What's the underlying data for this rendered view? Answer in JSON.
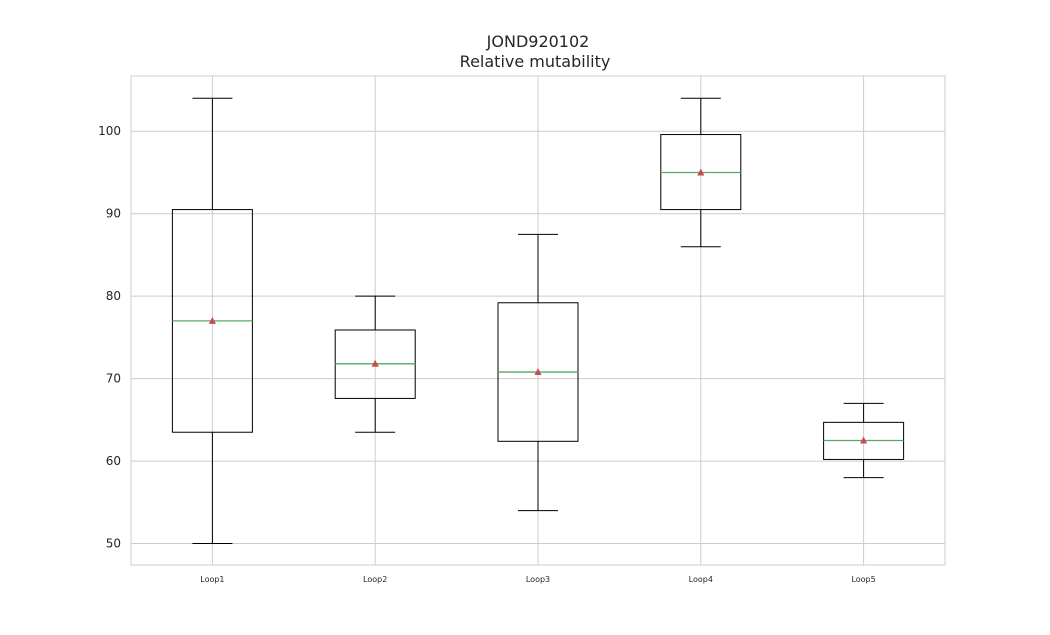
{
  "chart_data": {
    "type": "box",
    "title": "JOND920102",
    "subtitle": "Relative mutability",
    "xlabel": "",
    "ylabel": "",
    "ylim": [
      47.4,
      106.7
    ],
    "yticks": [
      50,
      60,
      70,
      80,
      90,
      100
    ],
    "grid": true,
    "colors": {
      "box": "#000000",
      "median": "#55a868",
      "mean_marker": "#c44e52",
      "grid": "#cccccc",
      "frame": "#cccccc"
    },
    "boxes": [
      {
        "label": "Loop1",
        "whisker_low": 50.0,
        "q1": 63.5,
        "median": 77.0,
        "mean": 77.0,
        "q3": 90.5,
        "whisker_high": 104.0
      },
      {
        "label": "Loop2",
        "whisker_low": 63.5,
        "q1": 67.6,
        "median": 71.8,
        "mean": 71.8,
        "q3": 75.9,
        "whisker_high": 80.0
      },
      {
        "label": "Loop3",
        "whisker_low": 54.0,
        "q1": 62.4,
        "median": 70.8,
        "mean": 70.8,
        "q3": 79.2,
        "whisker_high": 87.5
      },
      {
        "label": "Loop4",
        "whisker_low": 86.0,
        "q1": 90.5,
        "median": 95.0,
        "mean": 95.0,
        "q3": 99.6,
        "whisker_high": 104.0
      },
      {
        "label": "Loop5",
        "whisker_low": 58.0,
        "q1": 60.2,
        "median": 62.5,
        "mean": 62.5,
        "q3": 64.7,
        "whisker_high": 67.0
      }
    ]
  }
}
